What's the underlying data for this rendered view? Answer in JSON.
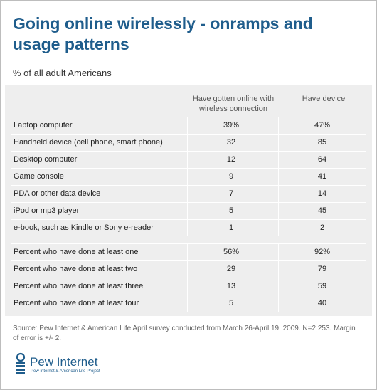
{
  "title": "Going online wirelessly - onramps and usage patterns",
  "subtitle": "% of all adult Americans",
  "chart_data": {
    "type": "table",
    "columns": [
      "Have gotten online with wireless connection",
      "Have device"
    ],
    "groups": [
      {
        "rows": [
          {
            "label": "Laptop computer",
            "values": [
              "39%",
              "47%"
            ]
          },
          {
            "label": "Handheld device (cell phone, smart phone)",
            "values": [
              "32",
              "85"
            ]
          },
          {
            "label": "Desktop computer",
            "values": [
              "12",
              "64"
            ]
          },
          {
            "label": "Game console",
            "values": [
              "9",
              "41"
            ]
          },
          {
            "label": "PDA or other data device",
            "values": [
              "7",
              "14"
            ]
          },
          {
            "label": "iPod or mp3 player",
            "values": [
              "5",
              "45"
            ]
          },
          {
            "label": "e-book, such as Kindle or Sony e-reader",
            "values": [
              "1",
              "2"
            ]
          }
        ]
      },
      {
        "rows": [
          {
            "label": "Percent who have done at least one",
            "values": [
              "56%",
              "92%"
            ]
          },
          {
            "label": "Percent who have done at least two",
            "values": [
              "29",
              "79"
            ]
          },
          {
            "label": "Percent who have done at least three",
            "values": [
              "13",
              "59"
            ]
          },
          {
            "label": "Percent who have done at least four",
            "values": [
              "5",
              "40"
            ]
          }
        ]
      }
    ]
  },
  "source": "Source: Pew Internet & American Life April survey conducted from March 26-April 19, 2009. N=2,253. Margin of error is +/- 2.",
  "logo": {
    "name": "Pew Internet",
    "tagline": "Pew Internet & American Life Project",
    "color": "#1f5d8c"
  }
}
